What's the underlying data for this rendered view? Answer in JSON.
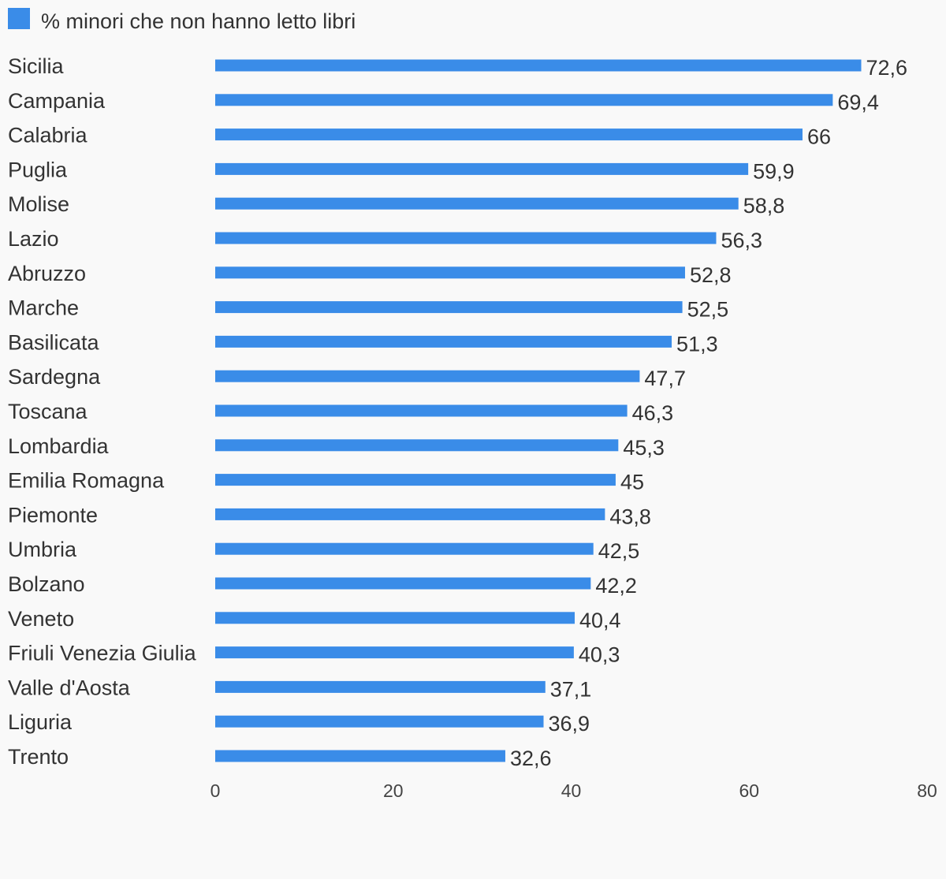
{
  "chart_data": {
    "type": "bar",
    "orientation": "horizontal",
    "legend": {
      "position": "top-left",
      "entries": [
        "% minori che non hanno letto libri"
      ]
    },
    "categories": [
      "Sicilia",
      "Campania",
      "Calabria",
      "Puglia",
      "Molise",
      "Lazio",
      "Abruzzo",
      "Marche",
      "Basilicata",
      "Sardegna",
      "Toscana",
      "Lombardia",
      "Emilia Romagna",
      "Piemonte",
      "Umbria",
      "Bolzano",
      "Veneto",
      "Friuli Venezia Giulia",
      "Valle d'Aosta",
      "Liguria",
      "Trento"
    ],
    "series": [
      {
        "name": "% minori che non hanno letto libri",
        "values": [
          72.6,
          69.4,
          66,
          59.9,
          58.8,
          56.3,
          52.8,
          52.5,
          51.3,
          47.7,
          46.3,
          45.3,
          45,
          43.8,
          42.5,
          42.2,
          40.4,
          40.3,
          37.1,
          36.9,
          32.6
        ],
        "value_labels": [
          "72,6",
          "69,4",
          "66",
          "59,9",
          "58,8",
          "56,3",
          "52,8",
          "52,5",
          "51,3",
          "47,7",
          "46,3",
          "45,3",
          "45",
          "43,8",
          "42,5",
          "42,2",
          "40,4",
          "40,3",
          "37,1",
          "36,9",
          "32,6"
        ],
        "color": "#3a8ce8"
      }
    ],
    "xlim": [
      0,
      80
    ],
    "x_ticks": [
      0,
      20,
      40,
      60,
      80
    ],
    "x_tick_labels": [
      "0",
      "20",
      "40",
      "60",
      "80"
    ],
    "grid": false,
    "colors": {
      "background": "#f9f9f9",
      "text": "#333333",
      "tick_text": "#444444"
    }
  }
}
